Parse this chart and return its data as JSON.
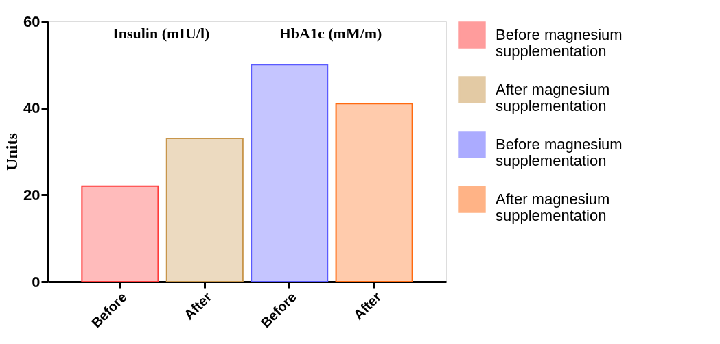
{
  "chart_data": {
    "type": "bar",
    "categories": [
      "Before",
      "After",
      "Before",
      "After"
    ],
    "series": [
      {
        "name": "Before magnesium supplementation",
        "color": "#ff3b3b",
        "values": [
          22,
          null,
          null,
          null
        ]
      },
      {
        "name": "After magnesium supplementation",
        "color": "#c8964b",
        "values": [
          null,
          33,
          null,
          null
        ]
      },
      {
        "name": "Before magnesium supplementation",
        "color": "#5a5aff",
        "values": [
          null,
          null,
          50,
          null
        ]
      },
      {
        "name": "After magnesium supplementation",
        "color": "#ff6a10",
        "values": [
          null,
          null,
          null,
          41
        ]
      }
    ],
    "ylabel": "Units",
    "ylim": [
      0,
      60
    ],
    "yticks": [
      0,
      20,
      40,
      60
    ],
    "grid": false,
    "legend": "right",
    "annotations": [
      "Insulin (mIU/l)",
      "HbA1c (mM/m)"
    ]
  }
}
